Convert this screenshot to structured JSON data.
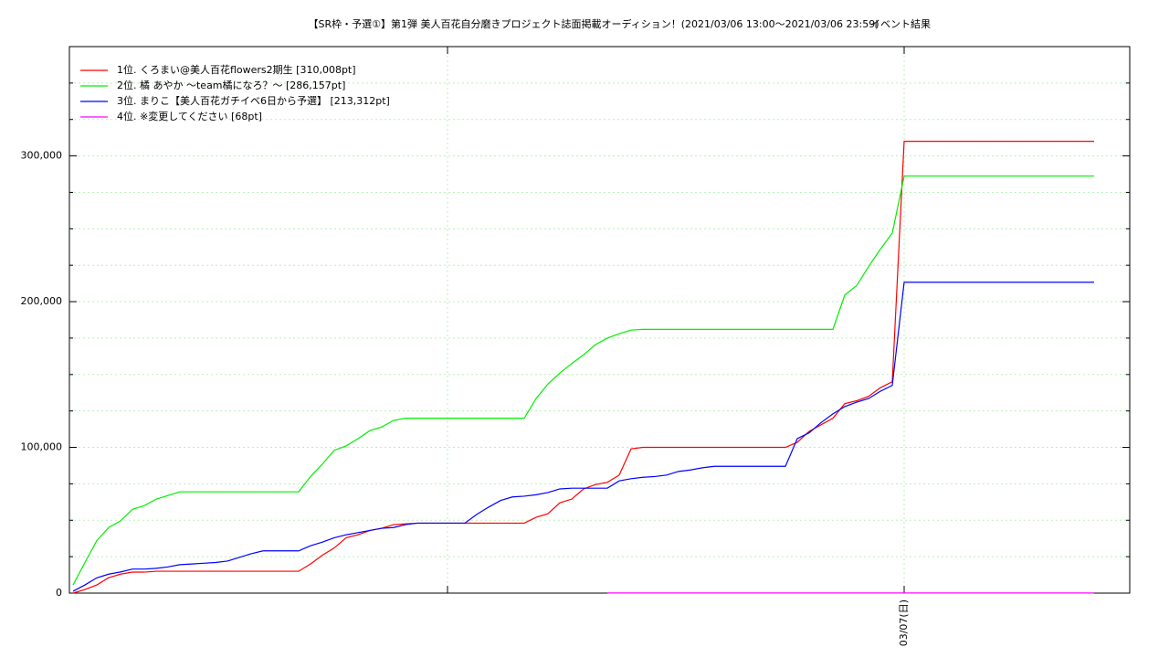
{
  "chart_data": {
    "type": "line",
    "title": "【SR枠・予選①】第1弾 美人百花自分磨きプロジェクト誌面掲載オーディション！(2021/03/06 13:00〜2021/03/06 23:59)",
    "subtitle": "イベント結果",
    "categories": [
      null,
      null,
      null,
      null,
      null,
      null,
      null,
      null,
      null,
      null,
      null,
      null,
      null,
      null,
      null,
      null,
      null,
      null,
      null,
      null,
      null,
      null,
      null,
      null,
      null,
      null,
      null,
      null,
      null,
      null,
      null,
      null,
      null,
      null,
      null,
      null,
      null,
      null,
      null,
      null,
      null,
      null,
      null,
      null,
      null,
      null,
      null,
      null,
      null,
      null,
      null,
      null,
      null,
      null,
      null,
      null,
      null,
      null,
      null,
      null,
      null,
      null,
      null,
      null,
      null,
      null,
      null,
      null,
      null,
      null,
      "03/07(日)",
      null,
      null,
      null,
      null,
      null,
      null,
      null,
      null,
      null,
      null,
      null,
      null,
      null,
      null,
      null,
      null
    ],
    "series": [
      {
        "name": "1位. くろまい@美人百花flowers2期生 [310,008pt]",
        "color": "#ff0000",
        "values": [
          0,
          2500,
          5600,
          10600,
          13000,
          14400,
          14400,
          15000,
          15000,
          15000,
          15000,
          15000,
          15000,
          15000,
          15000,
          15000,
          15000,
          15000,
          15000,
          15000,
          20000,
          26000,
          31000,
          38000,
          40000,
          43000,
          44500,
          47000,
          47500,
          48000,
          48000,
          48000,
          48000,
          48000,
          48000,
          48000,
          48000,
          48000,
          48000,
          52000,
          54500,
          62000,
          64500,
          71500,
          74500,
          76000,
          81000,
          99000,
          100000,
          100000,
          100000,
          100000,
          100000,
          100000,
          100000,
          100000,
          100000,
          100000,
          100000,
          100000,
          100000,
          103500,
          111000,
          115500,
          120000,
          130000,
          132000,
          135000,
          141000,
          145000,
          310008,
          310008,
          310008,
          310008,
          310008,
          310008,
          310008,
          310008,
          310008,
          310008,
          310008,
          310008,
          310008,
          310008,
          310008,
          310008,
          310008
        ]
      },
      {
        "name": "2位. 橘 あやか 〜team橘になろ？〜 [286,157pt]",
        "color": "#00ee00",
        "values": [
          5600,
          21000,
          36000,
          45000,
          49500,
          57500,
          60000,
          64500,
          67000,
          69500,
          69500,
          69500,
          69500,
          69500,
          69500,
          69500,
          69500,
          69500,
          69500,
          69500,
          80000,
          88500,
          98000,
          101000,
          106000,
          111500,
          114000,
          118500,
          120000,
          120000,
          120000,
          120000,
          120000,
          120000,
          120000,
          120000,
          120000,
          120000,
          120000,
          133500,
          143500,
          151000,
          157500,
          163500,
          170500,
          175000,
          178000,
          180500,
          181000,
          181000,
          181000,
          181000,
          181000,
          181000,
          181000,
          181000,
          181000,
          181000,
          181000,
          181000,
          181000,
          181000,
          181000,
          181000,
          181000,
          204500,
          211000,
          224000,
          236000,
          247000,
          286157,
          286157,
          286157,
          286157,
          286157,
          286157,
          286157,
          286157,
          286157,
          286157,
          286157,
          286157,
          286157,
          286157,
          286157,
          286157,
          286157
        ]
      },
      {
        "name": "3位. まりこ【美人百花ガチイベ6日から予選】 [213,312pt]",
        "color": "#0000ff",
        "values": [
          1300,
          5600,
          10500,
          13000,
          14500,
          16500,
          16500,
          17000,
          18000,
          19500,
          20000,
          20500,
          21000,
          22000,
          24500,
          27000,
          29000,
          29000,
          29000,
          29000,
          32500,
          35000,
          38000,
          40000,
          41500,
          43000,
          44500,
          45000,
          47000,
          48000,
          48000,
          48000,
          48000,
          48000,
          54000,
          59000,
          63500,
          66000,
          66500,
          67500,
          69000,
          71500,
          72000,
          72000,
          72000,
          72000,
          77000,
          78500,
          79500,
          80000,
          81000,
          83500,
          84500,
          86000,
          87000,
          87000,
          87000,
          87000,
          87000,
          87000,
          87000,
          106000,
          110000,
          117000,
          123000,
          128000,
          131000,
          133500,
          138500,
          142500,
          213312,
          213312,
          213312,
          213312,
          213312,
          213312,
          213312,
          213312,
          213312,
          213312,
          213312,
          213312,
          213312,
          213312,
          213312,
          213312,
          213312
        ]
      },
      {
        "name": "4位. ※変更してください [68pt]",
        "color": "#ff00ff",
        "values": [
          null,
          null,
          null,
          null,
          null,
          null,
          null,
          null,
          null,
          null,
          null,
          null,
          null,
          null,
          null,
          null,
          null,
          null,
          null,
          null,
          null,
          null,
          null,
          null,
          null,
          null,
          null,
          null,
          null,
          null,
          null,
          null,
          null,
          null,
          null,
          null,
          null,
          null,
          null,
          null,
          null,
          null,
          null,
          null,
          null,
          68,
          68,
          68,
          68,
          68,
          68,
          68,
          68,
          68,
          68,
          68,
          68,
          68,
          68,
          68,
          68,
          68,
          68,
          68,
          68,
          68,
          68,
          68,
          68,
          68,
          68,
          68,
          68,
          68,
          68,
          68,
          68,
          68,
          68,
          68,
          68,
          68,
          68,
          68,
          68,
          68,
          68
        ]
      }
    ],
    "ylim": [
      0,
      375000
    ],
    "yticks": [
      0,
      {
        "value": 100000,
        "label": "100,000"
      },
      {
        "value": 200000,
        "label": "200,000"
      },
      {
        "value": 300000,
        "label": "300,000"
      }
    ],
    "minor_yticks": [
      25000,
      50000,
      75000,
      125000,
      150000,
      175000,
      225000,
      250000,
      275000,
      325000,
      350000
    ],
    "grid": true
  }
}
